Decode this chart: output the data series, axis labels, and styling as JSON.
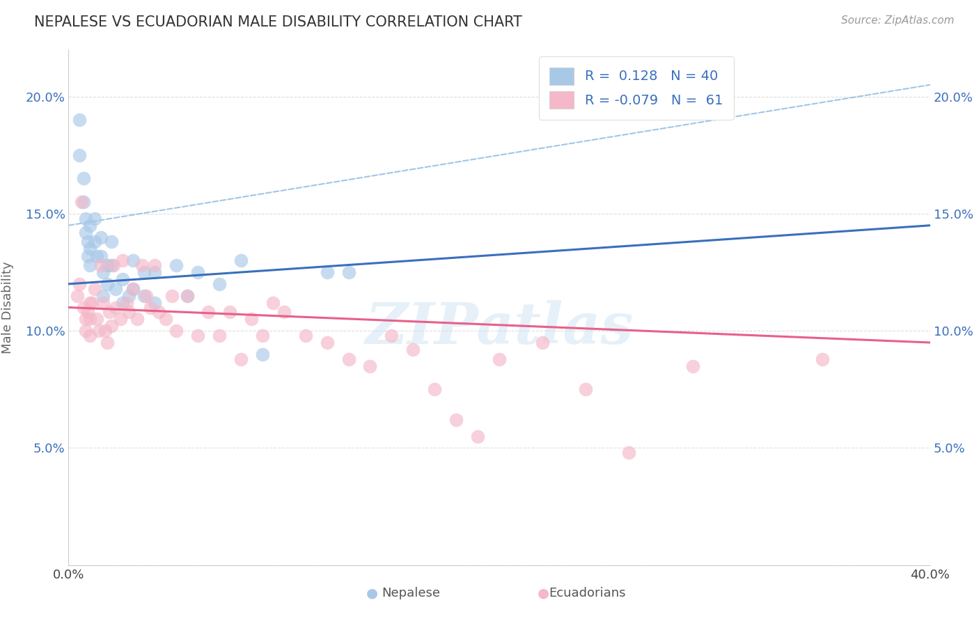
{
  "title": "NEPALESE VS ECUADORIAN MALE DISABILITY CORRELATION CHART",
  "source": "Source: ZipAtlas.com",
  "ylabel": "Male Disability",
  "xlim": [
    0.0,
    0.4
  ],
  "ylim": [
    0.0,
    0.22
  ],
  "xticks": [
    0.0,
    0.05,
    0.1,
    0.15,
    0.2,
    0.25,
    0.3,
    0.35,
    0.4
  ],
  "yticks": [
    0.0,
    0.05,
    0.1,
    0.15,
    0.2
  ],
  "nepalese_R": 0.128,
  "nepalese_N": 40,
  "ecuadorian_R": -0.079,
  "ecuadorian_N": 61,
  "nepalese_color": "#a8c8e8",
  "ecuadorian_color": "#f4b8c8",
  "nepalese_line_color": "#3a6fbd",
  "ecuadorian_line_color": "#e8608a",
  "dashed_line_color": "#88b8e0",
  "watermark": "ZIPatlas",
  "nepalese_x": [
    0.005,
    0.005,
    0.007,
    0.007,
    0.008,
    0.008,
    0.009,
    0.009,
    0.01,
    0.01,
    0.01,
    0.012,
    0.012,
    0.013,
    0.015,
    0.015,
    0.016,
    0.016,
    0.018,
    0.018,
    0.02,
    0.02,
    0.022,
    0.025,
    0.025,
    0.028,
    0.03,
    0.03,
    0.035,
    0.035,
    0.04,
    0.04,
    0.05,
    0.055,
    0.06,
    0.07,
    0.08,
    0.09,
    0.12,
    0.13
  ],
  "nepalese_y": [
    0.19,
    0.175,
    0.165,
    0.155,
    0.148,
    0.142,
    0.138,
    0.132,
    0.145,
    0.135,
    0.128,
    0.148,
    0.138,
    0.132,
    0.14,
    0.132,
    0.125,
    0.115,
    0.128,
    0.12,
    0.138,
    0.128,
    0.118,
    0.122,
    0.112,
    0.115,
    0.13,
    0.118,
    0.125,
    0.115,
    0.125,
    0.112,
    0.128,
    0.115,
    0.125,
    0.12,
    0.13,
    0.09,
    0.125,
    0.125
  ],
  "ecuadorian_x": [
    0.004,
    0.005,
    0.006,
    0.007,
    0.008,
    0.008,
    0.009,
    0.01,
    0.01,
    0.01,
    0.011,
    0.012,
    0.013,
    0.014,
    0.015,
    0.016,
    0.017,
    0.018,
    0.019,
    0.02,
    0.021,
    0.022,
    0.024,
    0.025,
    0.027,
    0.028,
    0.03,
    0.032,
    0.034,
    0.036,
    0.038,
    0.04,
    0.042,
    0.045,
    0.048,
    0.05,
    0.055,
    0.06,
    0.065,
    0.07,
    0.075,
    0.08,
    0.085,
    0.09,
    0.095,
    0.1,
    0.11,
    0.12,
    0.13,
    0.14,
    0.15,
    0.16,
    0.17,
    0.18,
    0.19,
    0.2,
    0.22,
    0.24,
    0.26,
    0.29,
    0.35
  ],
  "ecuadorian_y": [
    0.115,
    0.12,
    0.155,
    0.11,
    0.105,
    0.1,
    0.108,
    0.112,
    0.105,
    0.098,
    0.112,
    0.118,
    0.105,
    0.1,
    0.128,
    0.112,
    0.1,
    0.095,
    0.108,
    0.102,
    0.128,
    0.11,
    0.105,
    0.13,
    0.112,
    0.108,
    0.118,
    0.105,
    0.128,
    0.115,
    0.11,
    0.128,
    0.108,
    0.105,
    0.115,
    0.1,
    0.115,
    0.098,
    0.108,
    0.098,
    0.108,
    0.088,
    0.105,
    0.098,
    0.112,
    0.108,
    0.098,
    0.095,
    0.088,
    0.085,
    0.098,
    0.092,
    0.075,
    0.062,
    0.055,
    0.088,
    0.095,
    0.075,
    0.048,
    0.085,
    0.088
  ],
  "background_color": "#ffffff",
  "grid_color": "#dddddd"
}
